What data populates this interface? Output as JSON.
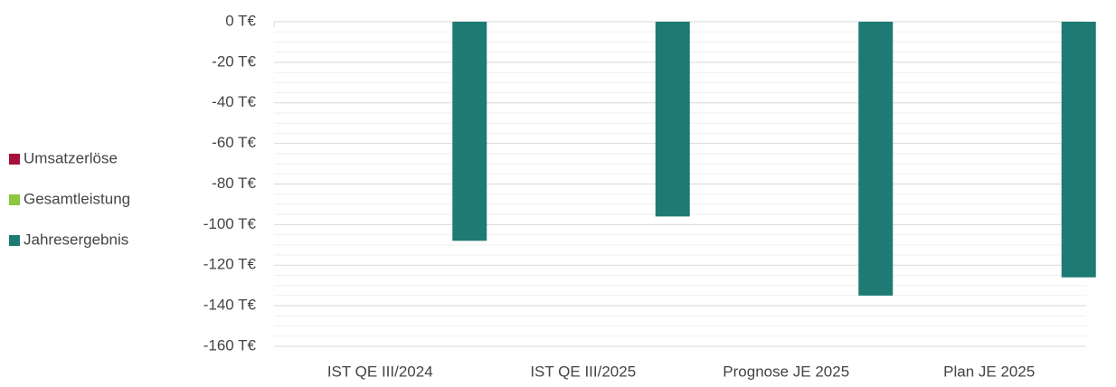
{
  "chart_data": {
    "type": "bar",
    "categories": [
      "IST QE III/2024",
      "IST QE III/2025",
      "Prognose JE 2025",
      "Plan JE 2025"
    ],
    "series": [
      {
        "name": "Umsatzerlöse",
        "color": "#a6113c",
        "values": [
          0,
          0,
          0,
          0
        ]
      },
      {
        "name": "Gesamtleistung",
        "color": "#8dc63f",
        "values": [
          0,
          0,
          0,
          0
        ]
      },
      {
        "name": "Jahresergebnis",
        "color": "#1e7b74",
        "values": [
          -108,
          -96,
          -135,
          -126
        ]
      }
    ],
    "ylim": [
      -160,
      0
    ],
    "yticks": [
      {
        "value": 0,
        "label": "0 T€"
      },
      {
        "value": -20,
        "label": "-20 T€"
      },
      {
        "value": -40,
        "label": "-40 T€"
      },
      {
        "value": -60,
        "label": "-60 T€"
      },
      {
        "value": -80,
        "label": "-80 T€"
      },
      {
        "value": -100,
        "label": "-100 T€"
      },
      {
        "value": -120,
        "label": "-120 T€"
      },
      {
        "value": -140,
        "label": "-140 T€"
      },
      {
        "value": -160,
        "label": "-160 T€"
      }
    ],
    "grid": true,
    "minor_grid": true,
    "legend": "left"
  }
}
